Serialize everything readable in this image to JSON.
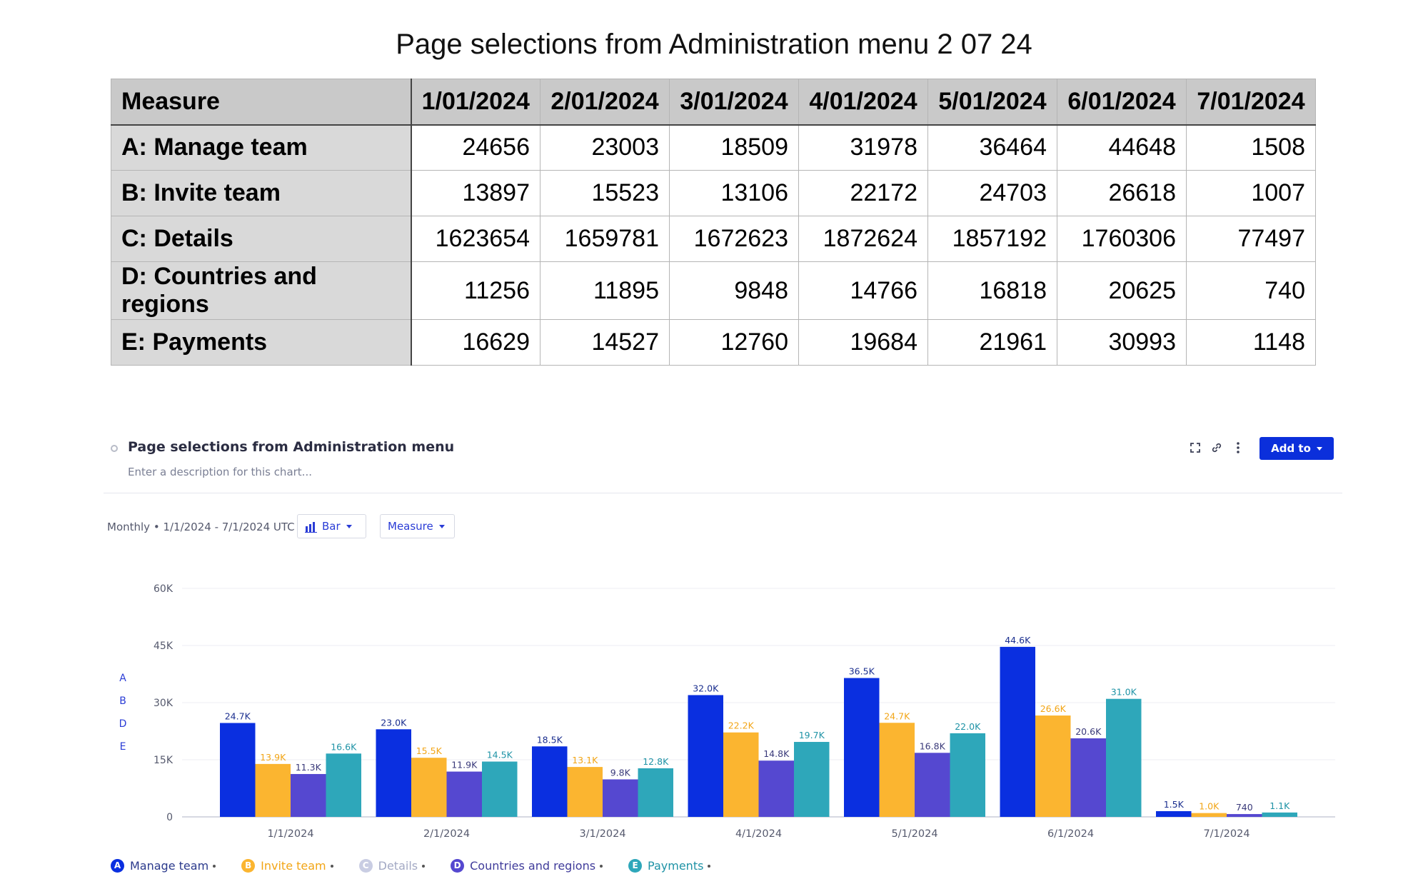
{
  "page_title": "Page selections from Administration menu 2 07 24",
  "table": {
    "header": "Measure",
    "columns": [
      "1/01/2024",
      "2/01/2024",
      "3/01/2024",
      "4/01/2024",
      "5/01/2024",
      "6/01/2024",
      "7/01/2024"
    ],
    "rows": [
      {
        "label": "A: Manage team",
        "values": [
          "24656",
          "23003",
          "18509",
          "31978",
          "36464",
          "44648",
          "1508"
        ]
      },
      {
        "label": "B: Invite team",
        "values": [
          "13897",
          "15523",
          "13106",
          "22172",
          "24703",
          "26618",
          "1007"
        ]
      },
      {
        "label": "C: Details",
        "values": [
          "1623654",
          "1659781",
          "1672623",
          "1872624",
          "1857192",
          "1760306",
          "77497"
        ]
      },
      {
        "label": "D: Countries and regions",
        "values": [
          "11256",
          "11895",
          "9848",
          "14766",
          "16818",
          "20625",
          "740"
        ]
      },
      {
        "label": "E: Payments",
        "values": [
          "16629",
          "14527",
          "12760",
          "19684",
          "21961",
          "30993",
          "1148"
        ]
      }
    ]
  },
  "chart_card": {
    "title": "Page selections from Administration menu",
    "description_placeholder": "Enter a description for this chart...",
    "add_to_label": "Add to",
    "date_range": "Monthly • 1/1/2024 - 7/1/2024 UTC",
    "chart_type_label": "Bar",
    "group_by_label": "Measure",
    "icons": [
      "fullscreen-icon",
      "link-icon",
      "more-vertical-icon",
      "bar-chart-icon",
      "chevron-down-icon"
    ]
  },
  "chart_data": {
    "type": "bar",
    "categories": [
      "1/1/2024",
      "2/1/2024",
      "3/1/2024",
      "4/1/2024",
      "5/1/2024",
      "6/1/2024",
      "7/1/2024"
    ],
    "y_ticks": [
      "0",
      "15K",
      "30K",
      "45K",
      "60K"
    ],
    "ylim": [
      0,
      60000
    ],
    "y_letters": [
      "A",
      "B",
      "D",
      "E"
    ],
    "grid": true,
    "series": [
      {
        "letter": "A",
        "name": "Manage team",
        "color": "#0a2fe0",
        "label_color": "#1b2f8f",
        "values": [
          24656,
          23003,
          18509,
          31978,
          36464,
          44648,
          1508
        ],
        "labels": [
          "24.7K",
          "23.0K",
          "18.5K",
          "32.0K",
          "36.5K",
          "44.6K",
          "1.5K"
        ]
      },
      {
        "letter": "B",
        "name": "Invite team",
        "color": "#fbb530",
        "label_color": "#f2a516",
        "values": [
          13897,
          15523,
          13106,
          22172,
          24703,
          26618,
          1007
        ],
        "labels": [
          "13.9K",
          "15.5K",
          "13.1K",
          "22.2K",
          "24.7K",
          "26.6K",
          "1.0K"
        ]
      },
      {
        "letter": "D",
        "name": "Countries and regions",
        "color": "#5548d0",
        "label_color": "#3a3a7a",
        "values": [
          11256,
          11895,
          9848,
          14766,
          16818,
          20625,
          740
        ],
        "labels": [
          "11.3K",
          "11.9K",
          "9.8K",
          "14.8K",
          "16.8K",
          "20.6K",
          "740"
        ]
      },
      {
        "letter": "E",
        "name": "Payments",
        "color": "#2ea7ba",
        "label_color": "#1f93a6",
        "values": [
          16629,
          14527,
          12760,
          19684,
          21961,
          30993,
          1148
        ],
        "labels": [
          "16.6K",
          "14.5K",
          "12.8K",
          "19.7K",
          "22.0K",
          "31.0K",
          "1.1K"
        ]
      }
    ],
    "legend": [
      {
        "letter": "A",
        "name": "Manage team",
        "color": "#0a2fe0",
        "text_color": "#2b3a8c"
      },
      {
        "letter": "B",
        "name": "Invite team",
        "color": "#fbb530",
        "text_color": "#f2a516"
      },
      {
        "letter": "C",
        "name": "Details",
        "color": "#c9cde3",
        "text_color": "#a3a9c4"
      },
      {
        "letter": "D",
        "name": "Countries and regions",
        "color": "#5548d0",
        "text_color": "#3f3b9a"
      },
      {
        "letter": "E",
        "name": "Payments",
        "color": "#2ea7ba",
        "text_color": "#1f93a6"
      }
    ],
    "legend_placement": "bottom-left"
  }
}
